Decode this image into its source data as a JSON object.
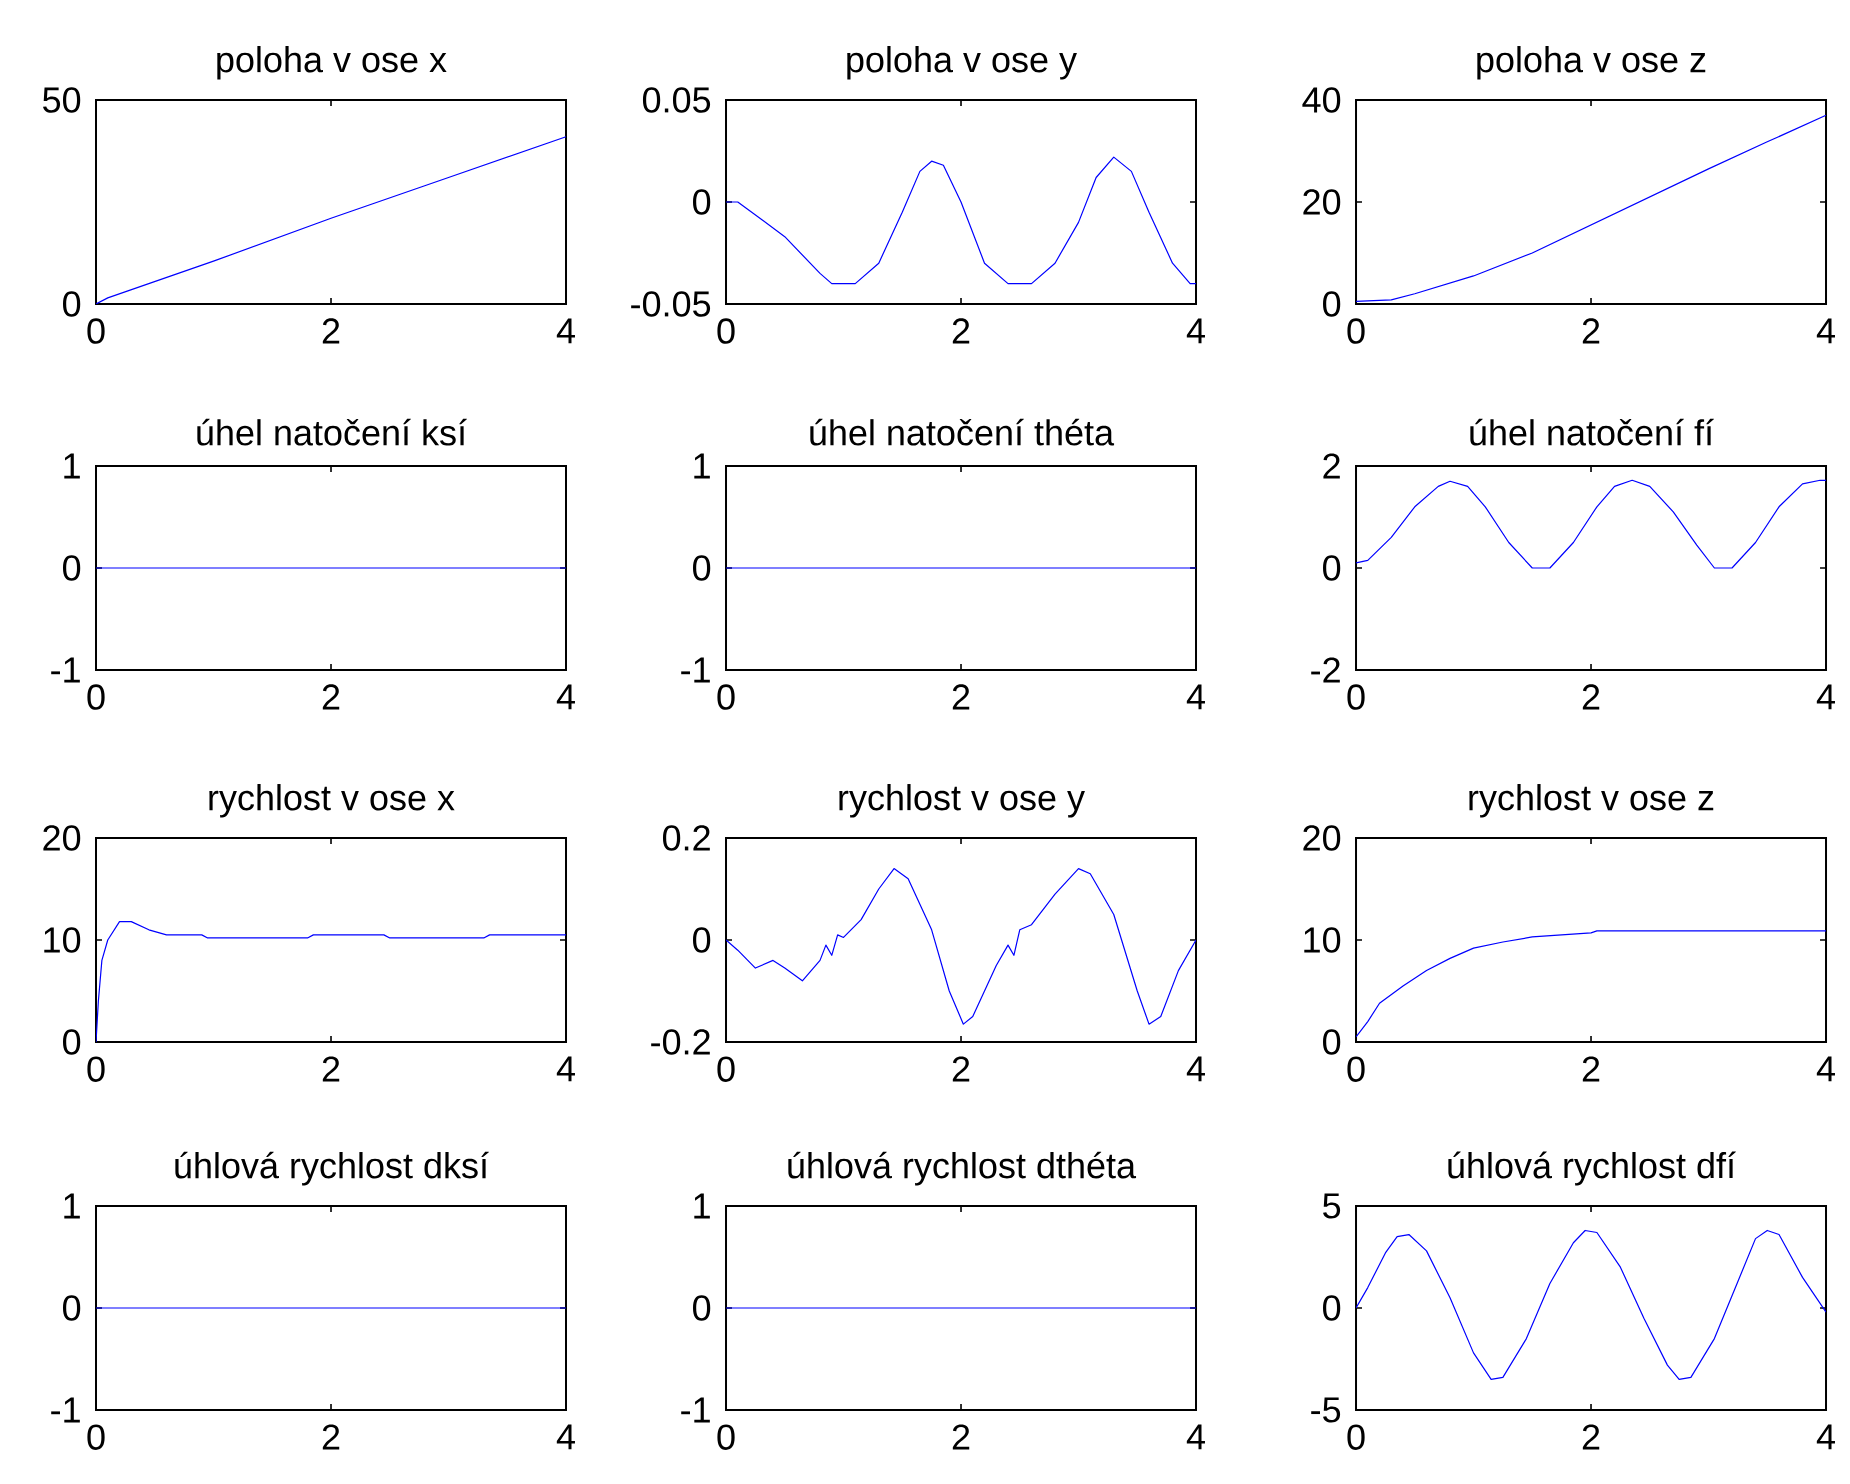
{
  "chart_data": [
    {
      "type": "line",
      "title": "poloha v ose x",
      "color": "#0000ff",
      "xlim": [
        0,
        4
      ],
      "ylim": [
        0,
        50
      ],
      "xticks": [
        0,
        2,
        4
      ],
      "yticks": [
        0,
        50
      ],
      "x": [
        0,
        0.1,
        1,
        2,
        3,
        4
      ],
      "values": [
        0,
        1.5,
        10.5,
        21,
        31,
        41
      ]
    },
    {
      "type": "line",
      "title": "poloha v ose y",
      "color": "#0000ff",
      "xlim": [
        0,
        4
      ],
      "ylim": [
        -0.05,
        0.05
      ],
      "xticks": [
        0,
        2,
        4
      ],
      "yticks": [
        -0.05,
        0,
        0.05
      ],
      "x": [
        0,
        0.1,
        0.5,
        0.8,
        0.9,
        1.1,
        1.3,
        1.5,
        1.65,
        1.75,
        1.85,
        2.0,
        2.2,
        2.4,
        2.6,
        2.8,
        3.0,
        3.15,
        3.3,
        3.45,
        3.6,
        3.8,
        3.95,
        4
      ],
      "values": [
        0,
        0,
        -0.017,
        -0.035,
        -0.04,
        -0.04,
        -0.03,
        -0.005,
        0.015,
        0.02,
        0.018,
        0,
        -0.03,
        -0.04,
        -0.04,
        -0.03,
        -0.01,
        0.012,
        0.022,
        0.015,
        -0.005,
        -0.03,
        -0.04,
        -0.04
      ]
    },
    {
      "type": "line",
      "title": "poloha v ose z",
      "color": "#0000ff",
      "xlim": [
        0,
        4
      ],
      "ylim": [
        0,
        40
      ],
      "xticks": [
        0,
        2,
        4
      ],
      "yticks": [
        0,
        20,
        40
      ],
      "x": [
        0,
        0.3,
        0.5,
        1,
        1.5,
        2,
        2.5,
        3,
        3.5,
        4
      ],
      "values": [
        0.5,
        0.8,
        2,
        5.5,
        10,
        15.5,
        21,
        26.5,
        31.8,
        37
      ]
    },
    {
      "type": "line",
      "title": "úhel natočení ksí",
      "color": "#0000ff",
      "xlim": [
        0,
        4
      ],
      "ylim": [
        -1,
        1
      ],
      "xticks": [
        0,
        2,
        4
      ],
      "yticks": [
        -1,
        0,
        1
      ],
      "x": [
        0,
        4
      ],
      "values": [
        0,
        0
      ]
    },
    {
      "type": "line",
      "title": "úhel natočení théta",
      "color": "#0000ff",
      "xlim": [
        0,
        4
      ],
      "ylim": [
        -1,
        1
      ],
      "xticks": [
        0,
        2,
        4
      ],
      "yticks": [
        -1,
        0,
        1
      ],
      "x": [
        0,
        4
      ],
      "values": [
        0,
        0
      ]
    },
    {
      "type": "line",
      "title": "úhel natočení fí",
      "color": "#0000ff",
      "xlim": [
        0,
        4
      ],
      "ylim": [
        -2,
        2
      ],
      "xticks": [
        0,
        2,
        4
      ],
      "yticks": [
        -2,
        0,
        2
      ],
      "x": [
        0,
        0.1,
        0.3,
        0.5,
        0.7,
        0.8,
        0.95,
        1.1,
        1.3,
        1.5,
        1.65,
        1.85,
        2.05,
        2.2,
        2.35,
        2.5,
        2.7,
        2.9,
        3.05,
        3.2,
        3.4,
        3.6,
        3.8,
        3.95,
        4
      ],
      "values": [
        0.1,
        0.15,
        0.6,
        1.2,
        1.6,
        1.7,
        1.6,
        1.2,
        0.5,
        0,
        0,
        0.5,
        1.2,
        1.6,
        1.72,
        1.6,
        1.1,
        0.45,
        0,
        0,
        0.5,
        1.2,
        1.65,
        1.72,
        1.72
      ]
    },
    {
      "type": "line",
      "title": "rychlost v ose x",
      "color": "#0000ff",
      "xlim": [
        0,
        4
      ],
      "ylim": [
        0,
        20
      ],
      "xticks": [
        0,
        2,
        4
      ],
      "yticks": [
        0,
        10,
        20
      ],
      "x": [
        0,
        0.02,
        0.05,
        0.1,
        0.2,
        0.3,
        0.45,
        0.6,
        0.9,
        0.95,
        1.8,
        1.85,
        2.45,
        2.5,
        3.3,
        3.35,
        4
      ],
      "values": [
        0,
        4,
        8,
        10,
        11.8,
        11.8,
        11,
        10.5,
        10.5,
        10.2,
        10.2,
        10.5,
        10.5,
        10.2,
        10.2,
        10.5,
        10.5
      ]
    },
    {
      "type": "line",
      "title": "rychlost v ose y",
      "color": "#0000ff",
      "xlim": [
        0,
        4
      ],
      "ylim": [
        -0.2,
        0.2
      ],
      "xticks": [
        0,
        2,
        4
      ],
      "yticks": [
        -0.2,
        0,
        0.2
      ],
      "x": [
        0,
        0.1,
        0.25,
        0.4,
        0.5,
        0.65,
        0.8,
        0.85,
        0.9,
        0.95,
        1.0,
        1.15,
        1.3,
        1.43,
        1.55,
        1.75,
        1.9,
        2.02,
        2.1,
        2.3,
        2.4,
        2.45,
        2.5,
        2.6,
        2.8,
        3.0,
        3.1,
        3.3,
        3.5,
        3.6,
        3.7,
        3.85,
        4
      ],
      "values": [
        0,
        -0.02,
        -0.055,
        -0.04,
        -0.055,
        -0.08,
        -0.04,
        -0.01,
        -0.03,
        0.01,
        0.005,
        0.04,
        0.1,
        0.14,
        0.12,
        0.02,
        -0.1,
        -0.165,
        -0.15,
        -0.05,
        -0.01,
        -0.03,
        0.02,
        0.03,
        0.09,
        0.14,
        0.13,
        0.05,
        -0.1,
        -0.165,
        -0.15,
        -0.06,
        0
      ]
    },
    {
      "type": "line",
      "title": "rychlost v ose z",
      "color": "#0000ff",
      "xlim": [
        0,
        4
      ],
      "ylim": [
        0,
        20
      ],
      "xticks": [
        0,
        2,
        4
      ],
      "yticks": [
        0,
        10,
        20
      ],
      "x": [
        0,
        0.1,
        0.2,
        0.4,
        0.6,
        0.8,
        1,
        1.25,
        1.5,
        1.75,
        2,
        2.05,
        4
      ],
      "values": [
        0.5,
        2,
        3.8,
        5.5,
        7,
        8.2,
        9.2,
        9.8,
        10.3,
        10.5,
        10.7,
        10.9,
        10.9
      ]
    },
    {
      "type": "line",
      "title": "úhlová rychlost dksí",
      "color": "#0000ff",
      "xlim": [
        0,
        4
      ],
      "ylim": [
        -1,
        1
      ],
      "xticks": [
        0,
        2,
        4
      ],
      "yticks": [
        -1,
        0,
        1
      ],
      "x": [
        0,
        4
      ],
      "values": [
        0,
        0
      ]
    },
    {
      "type": "line",
      "title": "úhlová rychlost dthéta",
      "color": "#0000ff",
      "xlim": [
        0,
        4
      ],
      "ylim": [
        -1,
        1
      ],
      "xticks": [
        0,
        2,
        4
      ],
      "yticks": [
        -1,
        0,
        1
      ],
      "x": [
        0,
        4
      ],
      "values": [
        0,
        0
      ]
    },
    {
      "type": "line",
      "title": "úhlová rychlost dfí",
      "color": "#0000ff",
      "xlim": [
        0,
        4
      ],
      "ylim": [
        -5,
        5
      ],
      "xticks": [
        0,
        2,
        4
      ],
      "yticks": [
        -5,
        0,
        5
      ],
      "x": [
        0,
        0.1,
        0.25,
        0.35,
        0.45,
        0.6,
        0.8,
        1.0,
        1.15,
        1.25,
        1.45,
        1.65,
        1.85,
        1.95,
        2.05,
        2.25,
        2.45,
        2.65,
        2.75,
        2.85,
        3.05,
        3.25,
        3.4,
        3.5,
        3.6,
        3.8,
        4
      ],
      "values": [
        0,
        1,
        2.7,
        3.5,
        3.6,
        2.8,
        0.5,
        -2.2,
        -3.5,
        -3.4,
        -1.5,
        1.2,
        3.2,
        3.8,
        3.7,
        2,
        -0.5,
        -2.8,
        -3.5,
        -3.4,
        -1.5,
        1.3,
        3.4,
        3.8,
        3.6,
        1.5,
        -0.2
      ]
    }
  ]
}
